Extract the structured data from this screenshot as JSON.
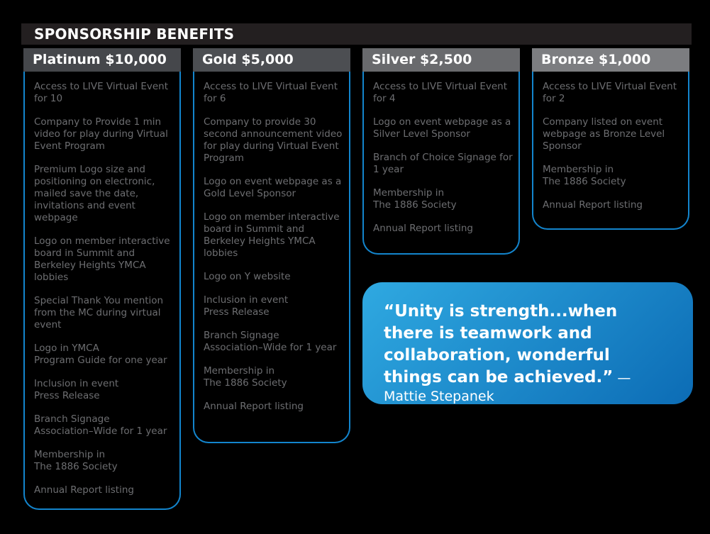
{
  "title": "SPONSORSHIP BENEFITS",
  "colors": {
    "page_bg": "#000000",
    "title_bar_bg": "#231f20",
    "box_border": "#1385cd",
    "body_text": "#6d6e71",
    "header_text": "#ffffff",
    "quote_gradient_start": "#2fa9e1",
    "quote_gradient_end": "#0c6cb5"
  },
  "columns": [
    {
      "id": "platinum",
      "title": "Platinum $10,000",
      "header_bg": "#45474b",
      "items": [
        "Access to LIVE Virtual Event for 10",
        "Company to Provide 1 min video for play during Virtual Event Program",
        "Premium Logo size and positioning on electronic, mailed save the date, invitations and event webpage",
        "Logo on member interactive board in Summit and Berkeley Heights YMCA lobbies",
        "Special Thank You mention from the MC during virtual event",
        "Logo in YMCA\nProgram Guide for one year",
        "Inclusion in event\nPress Release",
        "Branch Signage\nAssociation–Wide for 1 year",
        "Membership in\nThe 1886 Society",
        "Annual Report listing"
      ]
    },
    {
      "id": "gold",
      "title": "Gold $5,000",
      "header_bg": "#4c4e52",
      "items": [
        "Access to LIVE Virtual Event for 6",
        "Company to provide 30 second announcement video for play during Virtual Event Program",
        "Logo on event webpage as a Gold Level Sponsor",
        "Logo on member interactive board in Summit and Berkeley Heights YMCA lobbies",
        "Logo on Y website",
        "Inclusion in event\nPress Release",
        "Branch Signage\nAssociation–Wide for 1 year",
        "Membership in\nThe 1886 Society",
        "Annual Report listing"
      ]
    },
    {
      "id": "silver",
      "title": "Silver $2,500",
      "header_bg": "#696a6d",
      "items": [
        "Access to LIVE Virtual Event for 4",
        "Logo on event webpage as a Silver Level Sponsor",
        "Branch of Choice Signage for 1 year",
        "Membership in\nThe 1886 Society",
        "Annual Report listing"
      ]
    },
    {
      "id": "bronze",
      "title": "Bronze $1,000",
      "header_bg": "#7c7d80",
      "items": [
        "Access to LIVE Virtual Event for 2",
        "Company listed on event webpage as Bronze Level Sponsor",
        "Membership in\nThe 1886 Society",
        "Annual Report listing"
      ]
    }
  ],
  "quote": {
    "text": "“Unity is strength...when there is teamwork and collaboration, wonderful things can be achieved.”",
    "attribution": "—Mattie Stepanek"
  }
}
